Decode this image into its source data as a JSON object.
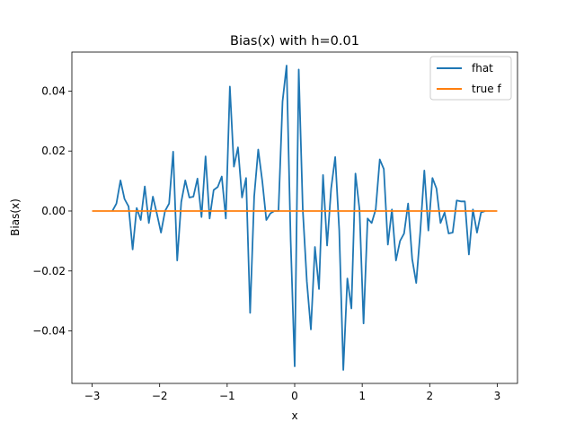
{
  "chart_data": {
    "type": "line",
    "title": "Bias(x) with h=0.01",
    "xlabel": "x",
    "ylabel": "Bias(x)",
    "xlim": [
      -3.3,
      3.3
    ],
    "ylim": [
      -0.0575,
      0.053
    ],
    "xticks": [
      -3,
      -2,
      -1,
      0,
      1,
      2,
      3
    ],
    "xtick_labels": [
      "−3",
      "−2",
      "−1",
      "0",
      "1",
      "2",
      "3"
    ],
    "yticks": [
      -0.04,
      -0.02,
      0.0,
      0.02,
      0.04
    ],
    "ytick_labels": [
      "−0.04",
      "−0.02",
      "0.00",
      "0.02",
      "0.04"
    ],
    "grid": false,
    "legend_position": "top-right",
    "series": [
      {
        "name": "fhat",
        "color": "#1f77b4",
        "x": [
          -2.7,
          -2.64,
          -2.58,
          -2.52,
          -2.46,
          -2.4,
          -2.34,
          -2.28,
          -2.22,
          -2.16,
          -2.1,
          -2.04,
          -1.98,
          -1.92,
          -1.86,
          -1.8,
          -1.74,
          -1.68,
          -1.62,
          -1.56,
          -1.5,
          -1.44,
          -1.38,
          -1.32,
          -1.26,
          -1.2,
          -1.14,
          -1.08,
          -1.02,
          -0.96,
          -0.9,
          -0.84,
          -0.78,
          -0.72,
          -0.66,
          -0.6,
          -0.54,
          -0.48,
          -0.42,
          -0.36,
          -0.3,
          -0.24,
          -0.18,
          -0.12,
          -0.06,
          0.0,
          0.06,
          0.12,
          0.18,
          0.24,
          0.3,
          0.36,
          0.42,
          0.48,
          0.54,
          0.6,
          0.66,
          0.72,
          0.78,
          0.84,
          0.9,
          0.96,
          1.02,
          1.08,
          1.14,
          1.2,
          1.26,
          1.32,
          1.38,
          1.44,
          1.5,
          1.56,
          1.62,
          1.68,
          1.74,
          1.8,
          1.86,
          1.92,
          1.98,
          2.04,
          2.1,
          2.16,
          2.22,
          2.28,
          2.34,
          2.4,
          2.46,
          2.52,
          2.58,
          2.64,
          2.7,
          2.76,
          2.82
        ],
        "values": [
          0.0,
          0.0025,
          0.0102,
          0.004,
          0.0015,
          -0.0128,
          0.001,
          -0.003,
          0.0082,
          -0.004,
          0.0048,
          -0.001,
          -0.0072,
          0.0,
          0.0025,
          0.0198,
          -0.0165,
          0.003,
          0.0102,
          0.0045,
          0.0048,
          0.0108,
          -0.002,
          0.0182,
          -0.0025,
          0.007,
          0.008,
          0.0115,
          -0.0025,
          0.0415,
          0.0148,
          0.0212,
          0.0045,
          0.011,
          -0.034,
          0.0048,
          0.0205,
          0.01,
          -0.003,
          -0.0008,
          0.0,
          0.0,
          0.0365,
          0.0485,
          -0.0095,
          -0.0518,
          0.0472,
          0.0005,
          -0.0235,
          -0.0395,
          -0.012,
          -0.026,
          0.012,
          -0.0115,
          0.0075,
          0.018,
          -0.0065,
          -0.053,
          -0.0225,
          -0.0325,
          0.0125,
          0.0005,
          -0.0375,
          -0.0025,
          -0.004,
          0.0005,
          0.0172,
          0.014,
          -0.0112,
          0.0005,
          -0.0165,
          -0.01,
          -0.0075,
          0.0025,
          -0.016,
          -0.024,
          -0.007,
          0.0135,
          -0.0065,
          0.011,
          0.0075,
          -0.004,
          -0.0005,
          -0.0075,
          -0.0072,
          0.0035,
          0.0032,
          0.0032,
          -0.0145,
          0.0005,
          -0.0072,
          -0.0005,
          0.0
        ]
      },
      {
        "name": "true f",
        "color": "#ff7f0e",
        "x": [
          -3.0,
          3.0
        ],
        "values": [
          0.0,
          0.0
        ]
      }
    ]
  }
}
